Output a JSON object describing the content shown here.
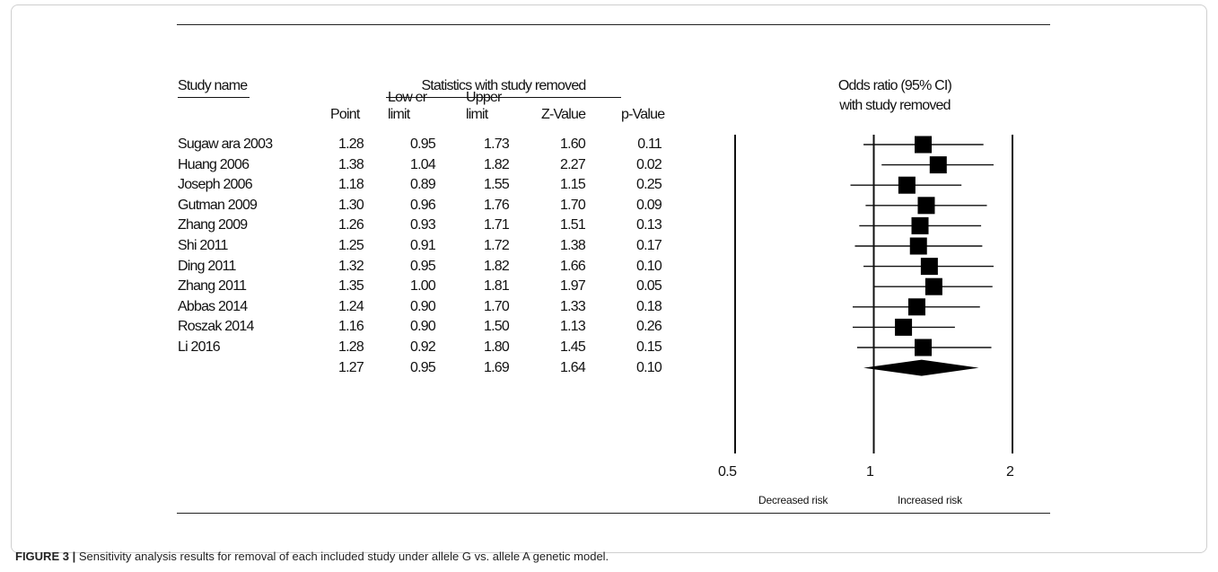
{
  "headers": {
    "study_name": "Study name",
    "stats_group": "Statistics with study removed",
    "point": "Point",
    "lower_1": "Low er",
    "lower_2": "limit",
    "upper_1": "Upper",
    "upper_2": "limit",
    "z": "Z-Value",
    "p": "p-Value",
    "plot_title_1": "Odds ratio (95% CI)",
    "plot_title_2": "with study removed"
  },
  "x_axis": {
    "ticks": [
      "0.5",
      "1",
      "2"
    ],
    "left_label": "Decreased risk",
    "right_label": "Increased risk"
  },
  "caption": {
    "label": "FIGURE 3 |",
    "text": " Sensitivity analysis results for removal of each included study under allele G vs. allele A genetic model."
  },
  "chart_data": {
    "type": "forest",
    "xscale": "log",
    "xlim": [
      0.5,
      2
    ],
    "rows": [
      {
        "study": "Sugaw ara 2003",
        "point": "1.28",
        "lower": "0.95",
        "upper": "1.73",
        "z": "1.60",
        "p": "0.11"
      },
      {
        "study": "Huang 2006",
        "point": "1.38",
        "lower": "1.04",
        "upper": "1.82",
        "z": "2.27",
        "p": "0.02"
      },
      {
        "study": "Joseph 2006",
        "point": "1.18",
        "lower": "0.89",
        "upper": "1.55",
        "z": "1.15",
        "p": "0.25"
      },
      {
        "study": "Gutman 2009",
        "point": "1.30",
        "lower": "0.96",
        "upper": "1.76",
        "z": "1.70",
        "p": "0.09"
      },
      {
        "study": "Zhang 2009",
        "point": "1.26",
        "lower": "0.93",
        "upper": "1.71",
        "z": "1.51",
        "p": "0.13"
      },
      {
        "study": "Shi 2011",
        "point": "1.25",
        "lower": "0.91",
        "upper": "1.72",
        "z": "1.38",
        "p": "0.17"
      },
      {
        "study": "Ding 2011",
        "point": "1.32",
        "lower": "0.95",
        "upper": "1.82",
        "z": "1.66",
        "p": "0.10"
      },
      {
        "study": "Zhang 2011",
        "point": "1.35",
        "lower": "1.00",
        "upper": "1.81",
        "z": "1.97",
        "p": "0.05"
      },
      {
        "study": "Abbas 2014",
        "point": "1.24",
        "lower": "0.90",
        "upper": "1.70",
        "z": "1.33",
        "p": "0.18"
      },
      {
        "study": "Roszak 2014",
        "point": "1.16",
        "lower": "0.90",
        "upper": "1.50",
        "z": "1.13",
        "p": "0.26"
      },
      {
        "study": "Li 2016",
        "point": "1.28",
        "lower": "0.92",
        "upper": "1.80",
        "z": "1.45",
        "p": "0.15"
      }
    ],
    "pooled": {
      "study": "",
      "point": "1.27",
      "lower": "0.95",
      "upper": "1.69",
      "z": "1.64",
      "p": "0.10"
    }
  }
}
